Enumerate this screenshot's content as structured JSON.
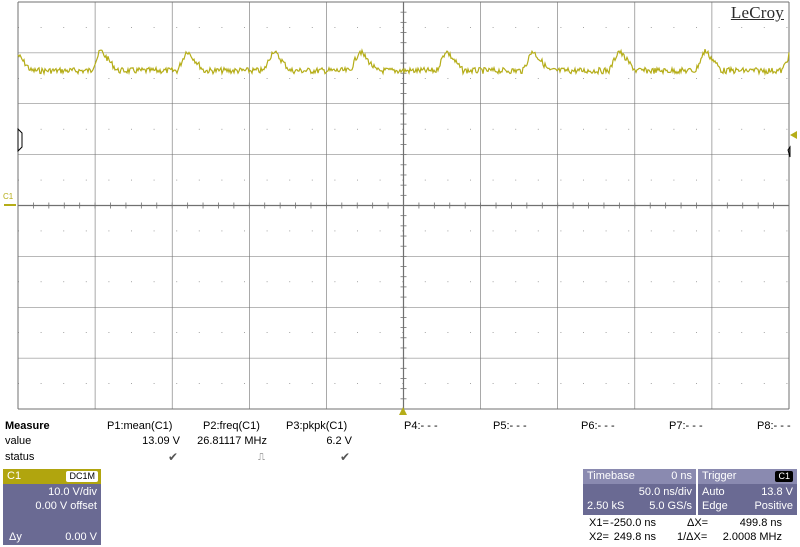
{
  "brand": "LeCroy",
  "channel_marker": "C1",
  "measure": {
    "title": "Measure",
    "row_value": "value",
    "row_status": "status",
    "params": [
      {
        "name": "P1:mean(C1)",
        "value": "13.09 V",
        "status": "✔"
      },
      {
        "name": "P2:freq(C1)",
        "value": "26.81117 MHz",
        "status": "⎍"
      },
      {
        "name": "P3:pkpk(C1)",
        "value": "6.2 V",
        "status": "✔"
      },
      {
        "name": "P4:- - -",
        "value": "",
        "status": ""
      },
      {
        "name": "P5:- - -",
        "value": "",
        "status": ""
      },
      {
        "name": "P6:- - -",
        "value": "",
        "status": ""
      },
      {
        "name": "P7:- - -",
        "value": "",
        "status": ""
      },
      {
        "name": "P8:- - -",
        "value": "",
        "status": ""
      }
    ]
  },
  "channel": {
    "label": "C1",
    "coupling": "DC1M",
    "vdiv": "10.0 V/div",
    "offset": "0.00 V offset",
    "dy_label": "Δy",
    "dy_value": "0.00 V"
  },
  "timebase": {
    "label": "Timebase",
    "delay": "0 ns",
    "tdiv": "50.0 ns/div",
    "samples": "2.50 kS",
    "rate": "5.0 GS/s"
  },
  "trigger": {
    "label": "Trigger",
    "source": "C1",
    "mode": "Auto",
    "level": "13.8 V",
    "type": "Edge",
    "slope": "Positive"
  },
  "cursors": {
    "x1_label": "X1=",
    "x1": "-250.0 ns",
    "dx_label": "ΔX=",
    "dx": "499.8 ns",
    "x2_label": "X2=",
    "x2": "249.8 ns",
    "inv_dx_label": "1/ΔX=",
    "inv_dx": "2.0008 MHz"
  },
  "colors": {
    "trace": "#b5ad18",
    "grid": "#707070",
    "panel": "#6a6a93",
    "panel_header": "#8a8ab0"
  },
  "waveform": {
    "baseline_div": 1.35,
    "peak_div": 0.4,
    "period_div": 1.12,
    "first_peak_div": 0.95,
    "noise_div": 0.06
  }
}
